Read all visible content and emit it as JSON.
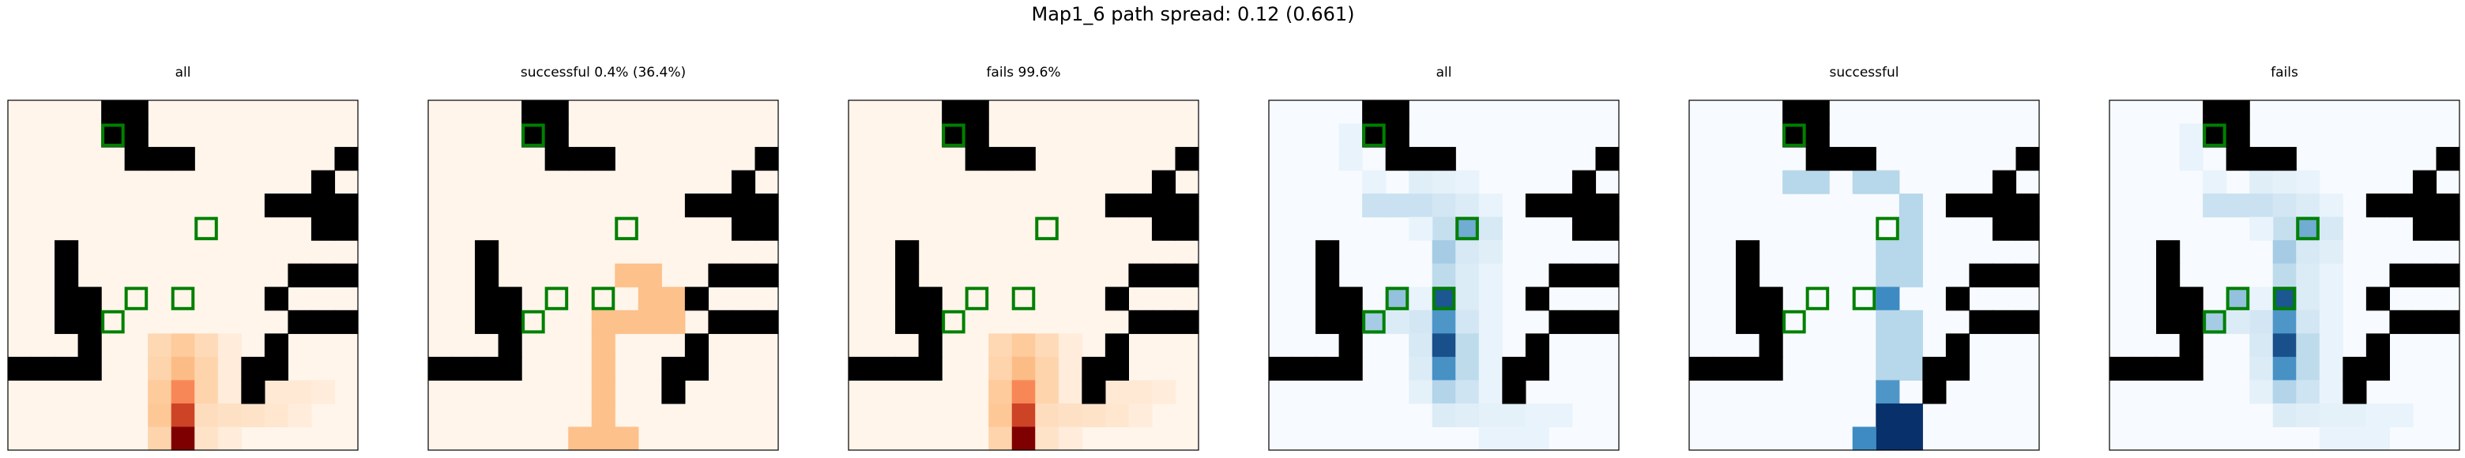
{
  "figure": {
    "title": "Map1_6 path spread: 0.12 (0.661)"
  },
  "chart_data": {
    "type": "heatmap",
    "grid_size": 15,
    "obstacles": [
      [
        4,
        0
      ],
      [
        5,
        0
      ],
      [
        4,
        1
      ],
      [
        5,
        1
      ],
      [
        5,
        2
      ],
      [
        6,
        2
      ],
      [
        7,
        2
      ],
      [
        14,
        2
      ],
      [
        13,
        3
      ],
      [
        12,
        4
      ],
      [
        13,
        4
      ],
      [
        14,
        4
      ],
      [
        11,
        4
      ],
      [
        13,
        5
      ],
      [
        14,
        5
      ],
      [
        2,
        6
      ],
      [
        2,
        7
      ],
      [
        2,
        8
      ],
      [
        12,
        7
      ],
      [
        13,
        7
      ],
      [
        14,
        7
      ],
      [
        3,
        8
      ],
      [
        2,
        9
      ],
      [
        3,
        9
      ],
      [
        11,
        8
      ],
      [
        12,
        9
      ],
      [
        13,
        9
      ],
      [
        14,
        9
      ],
      [
        3,
        10
      ],
      [
        2,
        11
      ],
      [
        3,
        11
      ],
      [
        11,
        10
      ],
      [
        0,
        11
      ],
      [
        1,
        11
      ],
      [
        10,
        11
      ],
      [
        11,
        11
      ],
      [
        10,
        12
      ]
    ],
    "markers": [
      [
        4,
        1
      ],
      [
        8,
        5
      ],
      [
        5,
        8
      ],
      [
        7,
        8
      ],
      [
        4,
        9
      ]
    ],
    "panels": [
      {
        "title": "all",
        "cmap": "reds",
        "cells": [
          [
            6,
            10,
            0.2
          ],
          [
            7,
            10,
            0.28
          ],
          [
            8,
            10,
            0.18
          ],
          [
            9,
            10,
            0.06
          ],
          [
            6,
            11,
            0.22
          ],
          [
            7,
            11,
            0.36
          ],
          [
            8,
            11,
            0.22
          ],
          [
            9,
            11,
            0.06
          ],
          [
            6,
            12,
            0.28
          ],
          [
            7,
            12,
            0.55
          ],
          [
            8,
            12,
            0.22
          ],
          [
            9,
            12,
            0.06
          ],
          [
            11,
            12,
            0.08
          ],
          [
            12,
            12,
            0.08
          ],
          [
            13,
            12,
            0.06
          ],
          [
            6,
            13,
            0.3
          ],
          [
            7,
            13,
            0.78
          ],
          [
            8,
            13,
            0.16
          ],
          [
            9,
            13,
            0.14
          ],
          [
            10,
            13,
            0.12
          ],
          [
            11,
            13,
            0.1
          ],
          [
            12,
            13,
            0.06
          ],
          [
            6,
            14,
            0.22
          ],
          [
            7,
            14,
            1.0
          ],
          [
            8,
            14,
            0.12
          ],
          [
            9,
            14,
            0.06
          ]
        ]
      },
      {
        "title": "successful 0.4% (36.4%)",
        "cmap": "reds",
        "cells": [
          [
            8,
            7,
            0.34
          ],
          [
            9,
            7,
            0.34
          ],
          [
            9,
            8,
            0.34
          ],
          [
            10,
            8,
            0.34
          ],
          [
            10,
            9,
            0.34
          ],
          [
            9,
            9,
            0.34
          ],
          [
            8,
            9,
            0.34
          ],
          [
            7,
            9,
            0.34
          ],
          [
            7,
            10,
            0.34
          ],
          [
            7,
            11,
            0.34
          ],
          [
            7,
            12,
            0.34
          ],
          [
            7,
            13,
            0.34
          ],
          [
            7,
            14,
            0.34
          ],
          [
            6,
            14,
            0.34
          ],
          [
            8,
            14,
            0.34
          ]
        ]
      },
      {
        "title": "fails 99.6%",
        "cmap": "reds",
        "cells": [
          [
            6,
            10,
            0.2
          ],
          [
            7,
            10,
            0.28
          ],
          [
            8,
            10,
            0.18
          ],
          [
            9,
            10,
            0.06
          ],
          [
            6,
            11,
            0.22
          ],
          [
            7,
            11,
            0.36
          ],
          [
            8,
            11,
            0.22
          ],
          [
            9,
            11,
            0.06
          ],
          [
            6,
            12,
            0.28
          ],
          [
            7,
            12,
            0.55
          ],
          [
            8,
            12,
            0.22
          ],
          [
            9,
            12,
            0.06
          ],
          [
            11,
            12,
            0.08
          ],
          [
            12,
            12,
            0.08
          ],
          [
            13,
            12,
            0.06
          ],
          [
            6,
            13,
            0.3
          ],
          [
            7,
            13,
            0.78
          ],
          [
            8,
            13,
            0.16
          ],
          [
            9,
            13,
            0.14
          ],
          [
            10,
            13,
            0.12
          ],
          [
            11,
            13,
            0.1
          ],
          [
            12,
            13,
            0.06
          ],
          [
            6,
            14,
            0.22
          ],
          [
            7,
            14,
            1.0
          ],
          [
            8,
            14,
            0.12
          ],
          [
            9,
            14,
            0.06
          ]
        ]
      },
      {
        "title": "all",
        "cmap": "blues",
        "cells": [
          [
            4,
            1,
            0.45
          ],
          [
            3,
            1,
            0.06
          ],
          [
            3,
            2,
            0.06
          ],
          [
            6,
            3,
            0.1
          ],
          [
            7,
            3,
            0.08
          ],
          [
            8,
            3,
            0.06
          ],
          [
            4,
            3,
            0.06
          ],
          [
            4,
            4,
            0.2
          ],
          [
            5,
            4,
            0.2
          ],
          [
            6,
            4,
            0.2
          ],
          [
            7,
            4,
            0.16
          ],
          [
            8,
            4,
            0.12
          ],
          [
            9,
            4,
            0.06
          ],
          [
            7,
            5,
            0.22
          ],
          [
            8,
            5,
            0.5
          ],
          [
            9,
            5,
            0.14
          ],
          [
            6,
            5,
            0.06
          ],
          [
            7,
            6,
            0.35
          ],
          [
            8,
            6,
            0.14
          ],
          [
            9,
            6,
            0.1
          ],
          [
            7,
            7,
            0.25
          ],
          [
            8,
            7,
            0.12
          ],
          [
            9,
            7,
            0.06
          ],
          [
            5,
            8,
            0.4
          ],
          [
            7,
            8,
            0.85
          ],
          [
            8,
            8,
            0.12
          ],
          [
            6,
            8,
            0.06
          ],
          [
            9,
            8,
            0.06
          ],
          [
            4,
            9,
            0.35
          ],
          [
            6,
            9,
            0.16
          ],
          [
            7,
            9,
            0.6
          ],
          [
            8,
            9,
            0.16
          ],
          [
            5,
            9,
            0.12
          ],
          [
            9,
            9,
            0.06
          ],
          [
            6,
            10,
            0.14
          ],
          [
            7,
            10,
            0.88
          ],
          [
            8,
            10,
            0.25
          ],
          [
            9,
            10,
            0.06
          ],
          [
            6,
            11,
            0.12
          ],
          [
            7,
            11,
            0.62
          ],
          [
            8,
            11,
            0.25
          ],
          [
            9,
            11,
            0.06
          ],
          [
            6,
            12,
            0.08
          ],
          [
            7,
            12,
            0.3
          ],
          [
            8,
            12,
            0.18
          ],
          [
            9,
            12,
            0.06
          ],
          [
            7,
            13,
            0.12
          ],
          [
            8,
            13,
            0.1
          ],
          [
            9,
            13,
            0.08
          ],
          [
            10,
            13,
            0.08
          ],
          [
            11,
            13,
            0.06
          ],
          [
            12,
            13,
            0.06
          ],
          [
            9,
            14,
            0.06
          ],
          [
            10,
            14,
            0.06
          ],
          [
            11,
            14,
            0.06
          ]
        ]
      },
      {
        "title": "successful",
        "cmap": "blues",
        "cells": [
          [
            4,
            3,
            0.28
          ],
          [
            5,
            3,
            0.28
          ],
          [
            7,
            3,
            0.28
          ],
          [
            8,
            3,
            0.28
          ],
          [
            9,
            4,
            0.28
          ],
          [
            9,
            5,
            0.28
          ],
          [
            9,
            6,
            0.28
          ],
          [
            8,
            6,
            0.28
          ],
          [
            9,
            7,
            0.28
          ],
          [
            8,
            7,
            0.28
          ],
          [
            8,
            8,
            0.65
          ],
          [
            8,
            9,
            0.28
          ],
          [
            9,
            9,
            0.28
          ],
          [
            8,
            10,
            0.28
          ],
          [
            9,
            10,
            0.28
          ],
          [
            8,
            11,
            0.28
          ],
          [
            9,
            11,
            0.28
          ],
          [
            8,
            12,
            0.6
          ],
          [
            8,
            13,
            1.0
          ],
          [
            9,
            13,
            1.0
          ],
          [
            8,
            14,
            1.0
          ],
          [
            9,
            14,
            1.0
          ],
          [
            7,
            14,
            0.65
          ]
        ]
      },
      {
        "title": "fails",
        "cmap": "blues",
        "cells": [
          [
            4,
            1,
            0.45
          ],
          [
            3,
            1,
            0.06
          ],
          [
            3,
            2,
            0.06
          ],
          [
            6,
            3,
            0.1
          ],
          [
            7,
            3,
            0.08
          ],
          [
            8,
            3,
            0.06
          ],
          [
            4,
            3,
            0.06
          ],
          [
            4,
            4,
            0.2
          ],
          [
            5,
            4,
            0.2
          ],
          [
            6,
            4,
            0.2
          ],
          [
            7,
            4,
            0.16
          ],
          [
            8,
            4,
            0.12
          ],
          [
            9,
            4,
            0.06
          ],
          [
            7,
            5,
            0.22
          ],
          [
            8,
            5,
            0.5
          ],
          [
            9,
            5,
            0.14
          ],
          [
            6,
            5,
            0.06
          ],
          [
            7,
            6,
            0.35
          ],
          [
            8,
            6,
            0.14
          ],
          [
            9,
            6,
            0.1
          ],
          [
            7,
            7,
            0.25
          ],
          [
            8,
            7,
            0.12
          ],
          [
            9,
            7,
            0.06
          ],
          [
            5,
            8,
            0.4
          ],
          [
            7,
            8,
            0.85
          ],
          [
            8,
            8,
            0.12
          ],
          [
            6,
            8,
            0.06
          ],
          [
            9,
            8,
            0.06
          ],
          [
            4,
            9,
            0.35
          ],
          [
            6,
            9,
            0.16
          ],
          [
            7,
            9,
            0.6
          ],
          [
            8,
            9,
            0.16
          ],
          [
            5,
            9,
            0.12
          ],
          [
            9,
            9,
            0.06
          ],
          [
            6,
            10,
            0.14
          ],
          [
            7,
            10,
            0.88
          ],
          [
            8,
            10,
            0.25
          ],
          [
            9,
            10,
            0.06
          ],
          [
            6,
            11,
            0.12
          ],
          [
            7,
            11,
            0.62
          ],
          [
            8,
            11,
            0.25
          ],
          [
            9,
            11,
            0.06
          ],
          [
            6,
            12,
            0.08
          ],
          [
            7,
            12,
            0.3
          ],
          [
            8,
            12,
            0.18
          ],
          [
            9,
            12,
            0.06
          ],
          [
            7,
            13,
            0.12
          ],
          [
            8,
            13,
            0.1
          ],
          [
            9,
            13,
            0.08
          ],
          [
            10,
            13,
            0.08
          ],
          [
            11,
            13,
            0.06
          ],
          [
            12,
            13,
            0.06
          ],
          [
            9,
            14,
            0.06
          ],
          [
            10,
            14,
            0.06
          ],
          [
            11,
            14,
            0.06
          ]
        ]
      }
    ]
  },
  "colors": {
    "obstacle": "#000000",
    "marker": "#008000",
    "frame": "#000000",
    "reds_low": "#fff5eb",
    "reds_mid": "#fdc38d",
    "reds_mid2": "#f5663a",
    "reds_high": "#7f0000",
    "blues_low": "#f7fbff",
    "blues_mid": "#abd0e6",
    "blues_mid2": "#3787c0",
    "blues_high": "#08306b"
  }
}
